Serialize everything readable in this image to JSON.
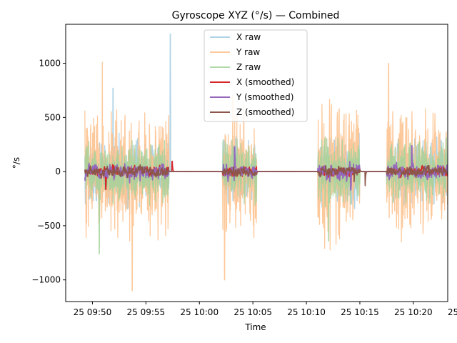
{
  "chart_data": {
    "type": "line",
    "title": "Gyroscope XYZ (°/s) — Combined",
    "xlabel": "Time",
    "ylabel": "°/s",
    "ylim": [
      -1200,
      1360
    ],
    "xlim": [
      0,
      100
    ],
    "yticks": [
      -1000,
      -500,
      0,
      500,
      1000
    ],
    "xticks": [
      {
        "x": 7,
        "label": "25 09:50"
      },
      {
        "x": 21,
        "label": "25 09:55"
      },
      {
        "x": 35,
        "label": "25 10:00"
      },
      {
        "x": 49,
        "label": "25 10:05"
      },
      {
        "x": 63,
        "label": "25 10:10"
      },
      {
        "x": 77,
        "label": "25 10:15"
      },
      {
        "x": 91,
        "label": "25 10:20"
      },
      {
        "x": 105,
        "label": "25 10:25"
      }
    ],
    "grid": false,
    "legend_position": "top-center",
    "active_segments": [
      [
        5,
        27
      ],
      [
        41,
        50
      ],
      [
        66,
        77
      ],
      [
        84,
        104
      ]
    ],
    "series": [
      {
        "name": "X raw",
        "color": "#a6cee3",
        "amp": 260,
        "alpha": 0.9,
        "width": 1.3,
        "seed": 11,
        "spikes": [
          [
            27.4,
            1270
          ],
          [
            12.4,
            770
          ],
          [
            5.2,
            -300
          ]
        ]
      },
      {
        "name": "Y raw",
        "color": "#fdbf8a",
        "amp": 520,
        "alpha": 0.85,
        "width": 1.3,
        "seed": 23,
        "spikes": [
          [
            17.4,
            -1100
          ],
          [
            84.5,
            1000
          ],
          [
            41.6,
            -1000
          ],
          [
            9.6,
            1010
          ]
        ]
      },
      {
        "name": "Z raw",
        "color": "#a3d29a",
        "amp": 240,
        "alpha": 0.85,
        "width": 1.3,
        "seed": 37,
        "spikes": [
          [
            8.8,
            -760
          ],
          [
            68.8,
            -640
          ]
        ]
      },
      {
        "name": "X (smoothed)",
        "color": "#d62728",
        "amp": 55,
        "alpha": 1,
        "width": 1.6,
        "seed": 41,
        "spikes": [
          [
            10.5,
            -165
          ],
          [
            27.9,
            95
          ]
        ]
      },
      {
        "name": "Y (smoothed)",
        "color": "#9467bd",
        "amp": 85,
        "alpha": 1,
        "width": 1.6,
        "seed": 53,
        "spikes": [
          [
            44.2,
            230
          ],
          [
            74.6,
            -170
          ],
          [
            90.6,
            240
          ]
        ]
      },
      {
        "name": "Z (smoothed)",
        "color": "#8c564b",
        "amp": 55,
        "alpha": 1,
        "width": 1.6,
        "seed": 67,
        "spikes": [
          [
            75.5,
            -95
          ],
          [
            78.4,
            -130
          ]
        ]
      }
    ]
  }
}
